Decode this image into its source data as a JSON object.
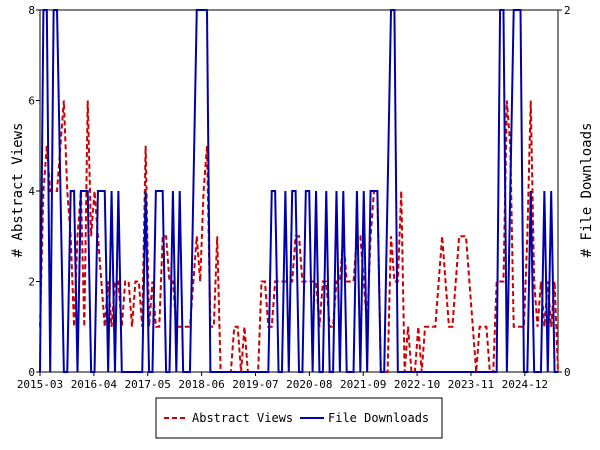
{
  "chart_data": {
    "type": "line",
    "x_axis": {
      "ticks": [
        "2015-03",
        "2016-04",
        "2017-05",
        "2018-06",
        "2019-07",
        "2020-08",
        "2021-09",
        "2022-10",
        "2023-11",
        "2024-12"
      ],
      "range": [
        "2015-03",
        "2025-08"
      ]
    },
    "y_left": {
      "label": "# Abstract Views",
      "range": [
        0,
        8
      ],
      "ticks": [
        0,
        2,
        4,
        6,
        8
      ]
    },
    "y_right": {
      "label": "# File Downloads",
      "range": [
        0,
        2
      ],
      "ticks": [
        0,
        2
      ]
    },
    "grid": false,
    "legend_placement": "bottom-center",
    "series": [
      {
        "name": "Abstract Views",
        "axis": "left",
        "color": "#cc0000",
        "style": "dashed",
        "values": [
          1,
          4,
          5,
          4,
          4,
          4,
          5,
          6,
          4,
          3,
          1,
          3,
          4,
          1,
          6,
          3,
          4,
          3,
          2,
          1,
          2,
          1,
          2,
          2,
          1,
          2,
          2,
          1,
          2,
          2,
          1,
          5,
          1,
          2,
          1,
          1,
          3,
          3,
          2,
          2,
          1,
          1,
          1,
          1,
          1,
          2,
          3,
          2,
          4,
          5,
          1,
          1,
          3,
          0,
          0,
          0,
          0,
          1,
          1,
          0,
          1,
          0,
          0,
          0,
          0,
          2,
          2,
          1,
          1,
          2,
          2,
          2,
          2,
          2,
          2,
          3,
          3,
          2,
          2,
          2,
          2,
          2,
          1,
          2,
          2,
          1,
          1,
          2,
          2,
          3,
          2,
          2,
          2,
          3,
          3,
          2,
          1,
          3,
          4,
          4,
          0,
          0,
          0,
          3,
          2,
          2,
          4,
          0,
          1,
          0,
          0,
          1,
          0,
          1,
          1,
          1,
          1,
          2,
          3,
          2,
          1,
          1,
          2,
          3,
          3,
          3,
          2,
          1,
          0,
          1,
          1,
          1,
          0,
          0,
          2,
          2,
          2,
          6,
          5,
          1,
          1,
          1,
          1,
          3,
          6,
          2,
          1,
          2,
          1,
          2,
          1,
          2,
          0
        ],
        "values_range": [
          "2015-03",
          "2025-08"
        ]
      },
      {
        "name": "File Downloads",
        "axis": "right",
        "color": "#0000aa",
        "style": "solid",
        "values": [
          0,
          2,
          2,
          0,
          2,
          2,
          1,
          0,
          0,
          1,
          1,
          0,
          1,
          1,
          1,
          0,
          0,
          1,
          1,
          1,
          0,
          1,
          0,
          1,
          0,
          0,
          0,
          0,
          0,
          0,
          0,
          1,
          0,
          0,
          1,
          1,
          1,
          0,
          0,
          1,
          0,
          1,
          0,
          0,
          0,
          1,
          2,
          2,
          2,
          2,
          0,
          0,
          0,
          0,
          0,
          0,
          0,
          0,
          0,
          0,
          0,
          0,
          0,
          0,
          0,
          0,
          0,
          0,
          1,
          1,
          0,
          0,
          1,
          0,
          1,
          1,
          0,
          0,
          1,
          1,
          0,
          1,
          0,
          0,
          1,
          0,
          0,
          1,
          0,
          1,
          0,
          0,
          0,
          1,
          0,
          1,
          0,
          1,
          1,
          1,
          0,
          0,
          1,
          2,
          2,
          0,
          0,
          0,
          0,
          0,
          0,
          0,
          0,
          0,
          0,
          0,
          0,
          0,
          0,
          0,
          0,
          0,
          0,
          0,
          0,
          0,
          0,
          0,
          0,
          0,
          0,
          0,
          0,
          0,
          0,
          2,
          2,
          0,
          1,
          2,
          2,
          2,
          0,
          0,
          1,
          0,
          0,
          0,
          1,
          0,
          1,
          0,
          0
        ],
        "values_range": [
          "2015-03",
          "2025-08"
        ]
      }
    ]
  }
}
